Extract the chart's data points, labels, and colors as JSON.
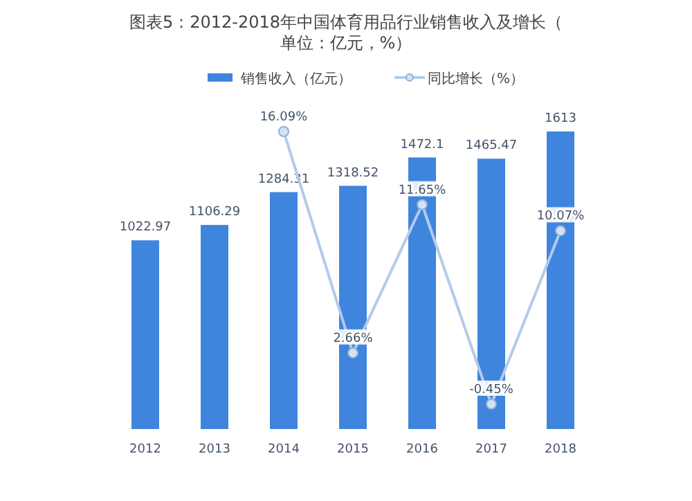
{
  "chart_data": {
    "type": "bar",
    "title": "图表5：2012-2018年中国体育用品行业销售收入及增长（单位：亿元，%）",
    "categories": [
      "2012",
      "2013",
      "2014",
      "2015",
      "2016",
      "2017",
      "2018"
    ],
    "series": [
      {
        "name": "销售收入（亿元）",
        "color": "#3f85de",
        "values": [
          1022.97,
          1106.29,
          1284.31,
          1318.52,
          1472.1,
          1465.47,
          1613
        ]
      },
      {
        "name": "同比增长（%）",
        "type": "line",
        "axis": "y2",
        "color": "#b3cbe8",
        "values": [
          null,
          null,
          16.09,
          2.66,
          11.65,
          -0.45,
          10.07
        ],
        "value_labels": [
          null,
          null,
          "16.09%",
          "2.66%",
          "11.65%",
          "-0.45%",
          "10.07%"
        ]
      }
    ],
    "data_labels": true,
    "legend": "top",
    "marker": "circle"
  }
}
